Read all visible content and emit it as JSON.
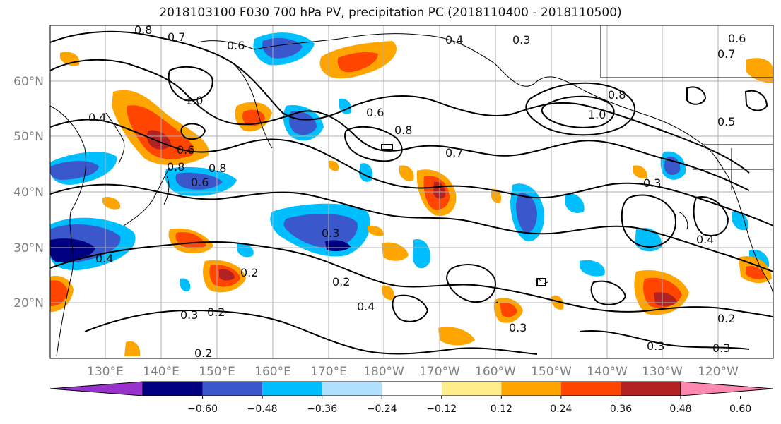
{
  "title": "2018103100 F030 700 hPa PV, precipitation PC (2018110400 - 2018110500)",
  "map": {
    "lat_ticks": [
      "60°N",
      "50°N",
      "40°N",
      "30°N",
      "20°N"
    ],
    "lon_ticks": [
      "130°E",
      "140°E",
      "150°E",
      "160°E",
      "170°E",
      "180°W",
      "170°W",
      "160°W",
      "150°W",
      "140°W",
      "130°W",
      "120°W"
    ],
    "pv_contour_labels": [
      "0.8",
      "0.7",
      "0.6",
      "1.0",
      "0.4",
      "0.3",
      "0.5",
      "0.2"
    ]
  },
  "colorbar": {
    "tick_labels": [
      "−0.60",
      "−0.48",
      "−0.36",
      "−0.24",
      "−0.12",
      "0.12",
      "0.24",
      "0.36",
      "0.48",
      "0.60"
    ],
    "colors": [
      "#9932cc",
      "#000080",
      "#3a57cc",
      "#00bfff",
      "#b0e2ff",
      "#ffffff",
      "#ffec8b",
      "#ffa500",
      "#ff4500",
      "#b22222",
      "#ff88b0"
    ]
  }
}
